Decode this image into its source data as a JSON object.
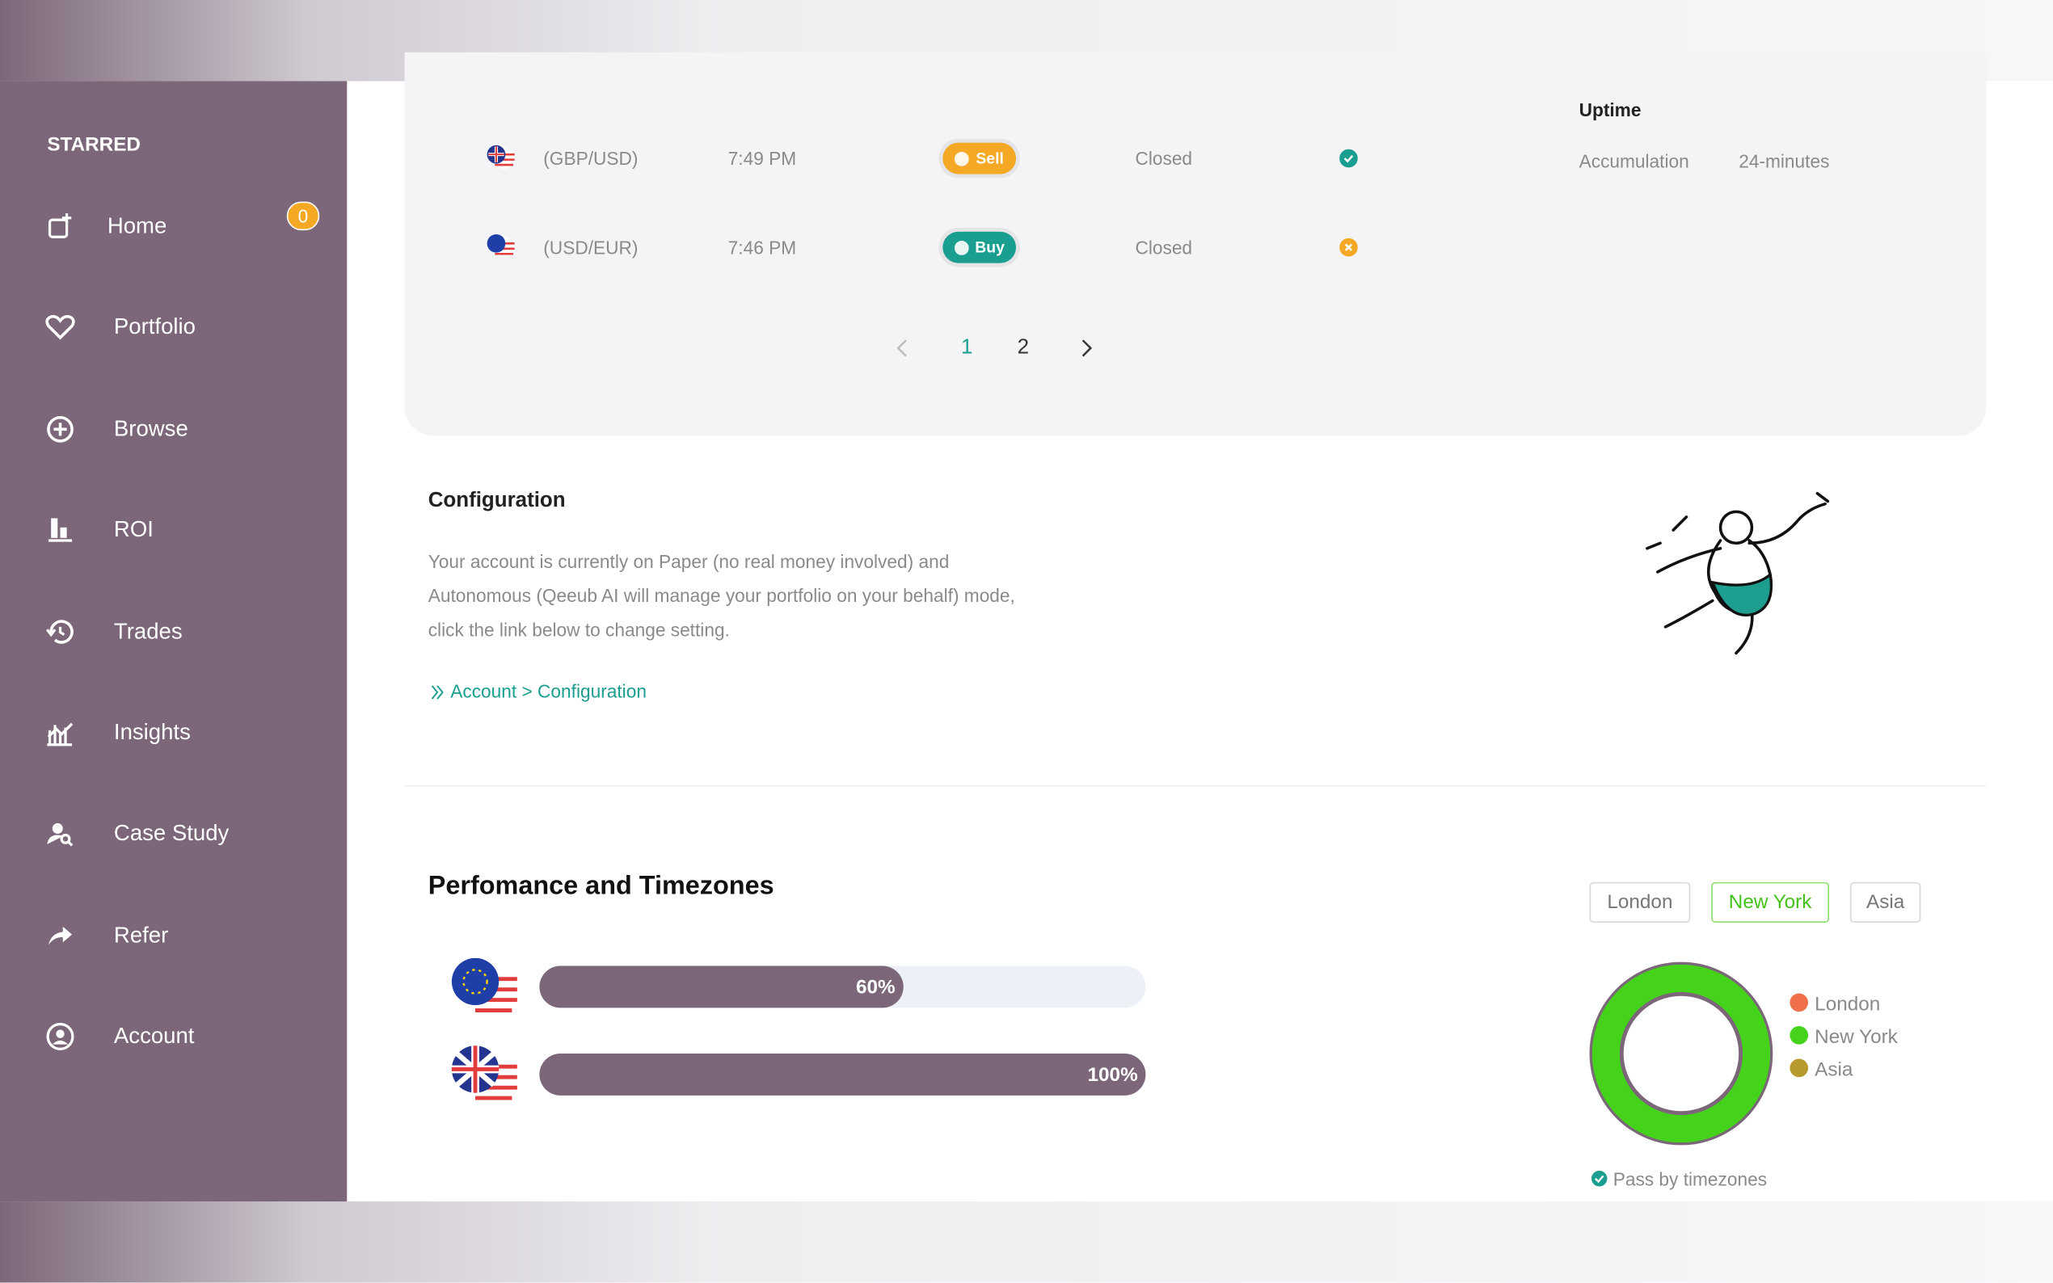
{
  "sidebar": {
    "heading": "STARRED",
    "items": [
      {
        "label": "Home",
        "badge": "0"
      },
      {
        "label": "Portfolio"
      },
      {
        "label": "Browse"
      },
      {
        "label": "ROI"
      },
      {
        "label": "Trades"
      },
      {
        "label": "Insights"
      },
      {
        "label": "Case Study"
      },
      {
        "label": "Refer"
      },
      {
        "label": "Account"
      }
    ]
  },
  "trades": {
    "rows": [
      {
        "pair": "(GBP/USD)",
        "time": "7:49 PM",
        "action": "Sell",
        "status": "Closed"
      },
      {
        "pair": "(USD/EUR)",
        "time": "7:46 PM",
        "action": "Buy",
        "status": "Closed"
      }
    ]
  },
  "uptime": {
    "title": "Uptime",
    "label": "Accumulation",
    "value": "24-minutes"
  },
  "pagination": {
    "pages": [
      "1",
      "2"
    ]
  },
  "configuration": {
    "title": "Configuration",
    "text": "Your account is currently on Paper (no real money involved) and Autonomous (Qeeub AI will manage your portfolio on your behalf) mode, click the link below to change setting.",
    "link": "Account > Configuration"
  },
  "performance": {
    "title": "Perfomance and Timezones",
    "bars": {
      "values": [
        60,
        100
      ],
      "value_labels": [
        "60%",
        "100%"
      ],
      "xlim": [
        0,
        100
      ],
      "color": "#7b6779"
    },
    "tabs": [
      "London",
      "New York",
      "Asia"
    ],
    "donut": {
      "type": "pie",
      "categories": [
        "London",
        "New York",
        "Asia"
      ],
      "values": [
        0,
        100,
        0
      ],
      "colors": [
        "#f0704c",
        "#44d21a",
        "#b8992c"
      ]
    },
    "footnote": "Pass by timezones"
  }
}
